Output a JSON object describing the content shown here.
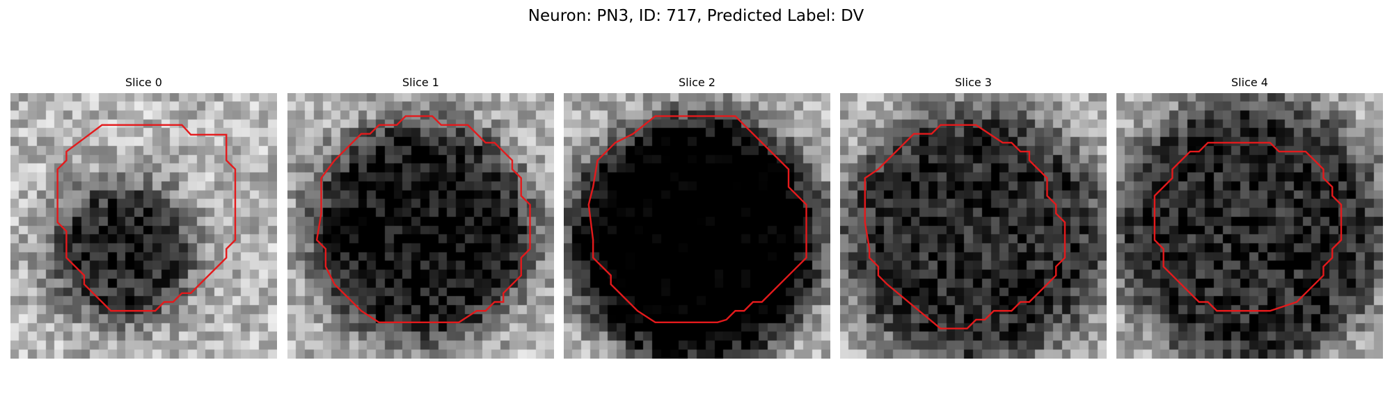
{
  "figure": {
    "title": "Neuron: PN3, ID: 717, Predicted Label: DV",
    "contour_color": "#e41a1c",
    "image_grid_size": 30,
    "colormap": "gray_r"
  },
  "slices": [
    {
      "label": "Slice 0",
      "blob": {
        "darkness": 0.62,
        "core_offset": [
          -0.08,
          0.1
        ],
        "core_radius": 0.26
      },
      "contour": [
        [
          10.3,
          3.6
        ],
        [
          19.3,
          3.6
        ],
        [
          20.3,
          4.7
        ],
        [
          24.3,
          4.7
        ],
        [
          24.3,
          7.6
        ],
        [
          25.3,
          8.6
        ],
        [
          25.3,
          16.6
        ],
        [
          24.3,
          17.6
        ],
        [
          24.3,
          18.6
        ],
        [
          20.3,
          22.6
        ],
        [
          19.3,
          22.6
        ],
        [
          18.3,
          23.6
        ],
        [
          17.3,
          23.6
        ],
        [
          16.3,
          24.6
        ],
        [
          11.3,
          24.6
        ],
        [
          10.3,
          23.6
        ],
        [
          9.3,
          22.6
        ],
        [
          8.3,
          21.6
        ],
        [
          8.3,
          20.6
        ],
        [
          7.3,
          19.6
        ],
        [
          6.3,
          18.6
        ],
        [
          6.3,
          15.6
        ],
        [
          5.3,
          14.6
        ],
        [
          5.3,
          8.6
        ],
        [
          6.3,
          7.6
        ],
        [
          6.3,
          6.6
        ]
      ]
    },
    {
      "label": "Slice 1",
      "blob": {
        "darkness": 0.68,
        "core_offset": [
          0.0,
          0.02
        ],
        "core_radius": 0.42
      },
      "contour": [
        [
          13.3,
          2.6
        ],
        [
          16.3,
          2.6
        ],
        [
          17.3,
          3.6
        ],
        [
          20.3,
          3.6
        ],
        [
          22.3,
          5.6
        ],
        [
          23.3,
          5.6
        ],
        [
          24.3,
          6.6
        ],
        [
          25.3,
          7.6
        ],
        [
          25.3,
          8.6
        ],
        [
          26.3,
          9.6
        ],
        [
          26.3,
          11.6
        ],
        [
          27.3,
          12.6
        ],
        [
          27.3,
          17.6
        ],
        [
          26.3,
          18.6
        ],
        [
          26.3,
          20.6
        ],
        [
          24.3,
          22.6
        ],
        [
          24.3,
          23.6
        ],
        [
          23.3,
          23.6
        ],
        [
          22.3,
          24.6
        ],
        [
          21.3,
          24.6
        ],
        [
          19.3,
          25.9
        ],
        [
          10.3,
          25.9
        ],
        [
          8.3,
          24.6
        ],
        [
          6.3,
          22.6
        ],
        [
          5.3,
          21.6
        ],
        [
          4.3,
          19.6
        ],
        [
          4.3,
          17.6
        ],
        [
          3.3,
          16.6
        ],
        [
          3.8,
          13.6
        ],
        [
          3.8,
          9.6
        ],
        [
          5.3,
          7.6
        ],
        [
          6.3,
          6.6
        ],
        [
          7.3,
          5.6
        ],
        [
          8.3,
          4.6
        ],
        [
          9.3,
          4.6
        ],
        [
          10.3,
          3.6
        ],
        [
          12.3,
          3.6
        ]
      ]
    },
    {
      "label": "Slice 2",
      "blob": {
        "darkness": 0.88,
        "core_offset": [
          0.0,
          0.05
        ],
        "core_radius": 0.47
      },
      "contour": [
        [
          10.3,
          2.6
        ],
        [
          19.3,
          2.6
        ],
        [
          24.3,
          7.6
        ],
        [
          25.3,
          8.6
        ],
        [
          25.3,
          10.6
        ],
        [
          27.3,
          12.6
        ],
        [
          27.3,
          18.6
        ],
        [
          26.3,
          19.6
        ],
        [
          25.3,
          20.6
        ],
        [
          22.3,
          23.6
        ],
        [
          21.3,
          23.6
        ],
        [
          20.3,
          24.6
        ],
        [
          19.3,
          24.6
        ],
        [
          18.3,
          25.6
        ],
        [
          17.3,
          25.9
        ],
        [
          10.3,
          25.9
        ],
        [
          8.3,
          24.6
        ],
        [
          7.3,
          23.6
        ],
        [
          6.3,
          22.6
        ],
        [
          5.3,
          21.6
        ],
        [
          5.3,
          20.6
        ],
        [
          3.3,
          18.6
        ],
        [
          3.3,
          16.6
        ],
        [
          2.8,
          12.6
        ],
        [
          3.3,
          10.6
        ],
        [
          3.8,
          7.6
        ],
        [
          5.8,
          5.6
        ],
        [
          7.8,
          4.6
        ]
      ]
    },
    {
      "label": "Slice 3",
      "blob": {
        "darkness": 0.58,
        "core_offset": [
          0.0,
          0.04
        ],
        "core_radius": 0.5
      },
      "contour": [
        [
          11.3,
          3.6
        ],
        [
          15.3,
          3.6
        ],
        [
          18.3,
          5.6
        ],
        [
          19.3,
          5.6
        ],
        [
          20.3,
          6.6
        ],
        [
          21.3,
          6.6
        ],
        [
          21.3,
          7.6
        ],
        [
          22.3,
          8.6
        ],
        [
          23.3,
          9.6
        ],
        [
          23.3,
          11.6
        ],
        [
          24.3,
          12.6
        ],
        [
          24.3,
          13.6
        ],
        [
          25.3,
          14.6
        ],
        [
          25.3,
          18.6
        ],
        [
          24.3,
          19.6
        ],
        [
          24.3,
          20.6
        ],
        [
          23.3,
          21.6
        ],
        [
          21.3,
          23.6
        ],
        [
          20.3,
          23.6
        ],
        [
          19.3,
          24.6
        ],
        [
          17.3,
          24.6
        ],
        [
          16.3,
          25.6
        ],
        [
          15.3,
          25.6
        ],
        [
          14.3,
          26.6
        ],
        [
          11.3,
          26.6
        ],
        [
          5.3,
          21.6
        ],
        [
          4.3,
          20.6
        ],
        [
          4.3,
          19.6
        ],
        [
          3.3,
          18.6
        ],
        [
          3.3,
          17.6
        ],
        [
          2.8,
          14.6
        ],
        [
          2.8,
          9.6
        ],
        [
          4.3,
          8.6
        ],
        [
          5.3,
          7.6
        ],
        [
          6.3,
          6.6
        ],
        [
          7.3,
          5.6
        ],
        [
          8.3,
          4.6
        ],
        [
          10.3,
          4.6
        ]
      ]
    },
    {
      "label": "Slice 4",
      "blob": {
        "darkness": 0.58,
        "core_offset": [
          0.0,
          0.02
        ],
        "core_radius": 0.52
      },
      "contour": [
        [
          10.3,
          5.6
        ],
        [
          17.3,
          5.6
        ],
        [
          18.3,
          6.6
        ],
        [
          21.3,
          6.6
        ],
        [
          22.3,
          7.6
        ],
        [
          23.3,
          8.6
        ],
        [
          23.3,
          9.6
        ],
        [
          24.3,
          10.6
        ],
        [
          24.3,
          11.6
        ],
        [
          25.3,
          12.6
        ],
        [
          25.3,
          16.6
        ],
        [
          24.3,
          17.6
        ],
        [
          24.3,
          18.6
        ],
        [
          23.3,
          19.6
        ],
        [
          23.3,
          20.6
        ],
        [
          20.3,
          23.6
        ],
        [
          17.3,
          24.6
        ],
        [
          11.3,
          24.6
        ],
        [
          10.3,
          23.6
        ],
        [
          9.3,
          23.6
        ],
        [
          7.3,
          21.6
        ],
        [
          6.3,
          20.6
        ],
        [
          5.3,
          19.6
        ],
        [
          5.3,
          17.6
        ],
        [
          4.3,
          16.6
        ],
        [
          4.3,
          11.6
        ],
        [
          5.3,
          10.6
        ],
        [
          6.3,
          9.6
        ],
        [
          6.3,
          8.6
        ],
        [
          7.3,
          7.6
        ],
        [
          8.3,
          6.6
        ],
        [
          9.3,
          6.6
        ]
      ]
    }
  ]
}
